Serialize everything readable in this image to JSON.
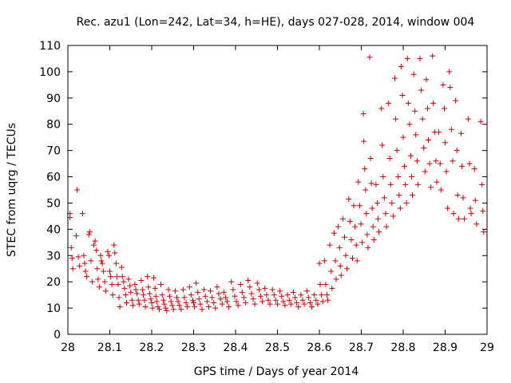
{
  "chart_data": {
    "type": "scatter",
    "title": "Rec. azu1 (Lon=242, Lat=34, h=HE), days 027-028, 2014, window 004",
    "xlabel": "GPS time / Days of year 2014",
    "ylabel": "STEC from uqrg / TECUs",
    "xlim": [
      28,
      29
    ],
    "ylim": [
      0,
      110
    ],
    "x_ticks": [
      28,
      28.1,
      28.2,
      28.3,
      28.4,
      28.5,
      28.6,
      28.7,
      28.8,
      28.9,
      29
    ],
    "x_tick_labels": [
      "28",
      "28.1",
      "28.2",
      "28.3",
      "28.4",
      "28.5",
      "28.6",
      "28.7",
      "28.8",
      "28.9",
      "29"
    ],
    "y_ticks": [
      0,
      10,
      20,
      30,
      40,
      50,
      60,
      70,
      80,
      90,
      100,
      110
    ],
    "y_tick_labels": [
      "0",
      "10",
      "20",
      "30",
      "40",
      "50",
      "60",
      "70",
      "80",
      "90",
      "100",
      "110"
    ],
    "grid": false,
    "marker": "+",
    "color": "#cc0000",
    "series": [
      {
        "name": "STEC",
        "points": [
          [
            28.005,
            46
          ],
          [
            28.005,
            44.5
          ],
          [
            28.008,
            33
          ],
          [
            28.01,
            29
          ],
          [
            28.012,
            25
          ],
          [
            28.02,
            37.5
          ],
          [
            28.022,
            55
          ],
          [
            28.025,
            29.5
          ],
          [
            28.028,
            26
          ],
          [
            28.035,
            46
          ],
          [
            28.038,
            30
          ],
          [
            28.04,
            27
          ],
          [
            28.042,
            24
          ],
          [
            28.045,
            22
          ],
          [
            28.05,
            38
          ],
          [
            28.052,
            39
          ],
          [
            28.055,
            28
          ],
          [
            28.058,
            20
          ],
          [
            28.062,
            34
          ],
          [
            28.065,
            35.5
          ],
          [
            28.068,
            32
          ],
          [
            28.07,
            25
          ],
          [
            28.072,
            21
          ],
          [
            28.075,
            18
          ],
          [
            28.078,
            30
          ],
          [
            28.08,
            28
          ],
          [
            28.082,
            27
          ],
          [
            28.085,
            24
          ],
          [
            28.088,
            20
          ],
          [
            28.09,
            16.5
          ],
          [
            28.095,
            31.5
          ],
          [
            28.098,
            30
          ],
          [
            28.1,
            24
          ],
          [
            28.102,
            22
          ],
          [
            28.105,
            19
          ],
          [
            28.107,
            15
          ],
          [
            28.11,
            34
          ],
          [
            28.112,
            31
          ],
          [
            28.115,
            27
          ],
          [
            28.117,
            22
          ],
          [
            28.12,
            19
          ],
          [
            28.122,
            14
          ],
          [
            28.124,
            10.5
          ],
          [
            28.128,
            25.5
          ],
          [
            28.13,
            22
          ],
          [
            28.133,
            20
          ],
          [
            28.135,
            17.5
          ],
          [
            28.138,
            15
          ],
          [
            28.14,
            12
          ],
          [
            28.145,
            21
          ],
          [
            28.148,
            18.5
          ],
          [
            28.15,
            16
          ],
          [
            28.153,
            13
          ],
          [
            28.155,
            11
          ],
          [
            28.16,
            19
          ],
          [
            28.162,
            17
          ],
          [
            28.165,
            15.5
          ],
          [
            28.168,
            13
          ],
          [
            28.17,
            11.5
          ],
          [
            28.175,
            20.5
          ],
          [
            28.178,
            17
          ],
          [
            28.18,
            15
          ],
          [
            28.183,
            13
          ],
          [
            28.185,
            10.5
          ],
          [
            28.19,
            22
          ],
          [
            28.192,
            18
          ],
          [
            28.195,
            15.5
          ],
          [
            28.198,
            13.5
          ],
          [
            28.2,
            12
          ],
          [
            28.202,
            10
          ],
          [
            28.205,
            21.5
          ],
          [
            28.208,
            17.5
          ],
          [
            28.21,
            14.5
          ],
          [
            28.212,
            12.5
          ],
          [
            28.215,
            10.5
          ],
          [
            28.218,
            9.5
          ],
          [
            28.222,
            19
          ],
          [
            28.225,
            15
          ],
          [
            28.228,
            13
          ],
          [
            28.23,
            11.5
          ],
          [
            28.233,
            10
          ],
          [
            28.236,
            9
          ],
          [
            28.24,
            17
          ],
          [
            28.243,
            14.5
          ],
          [
            28.246,
            12.5
          ],
          [
            28.249,
            11
          ],
          [
            28.252,
            9.5
          ],
          [
            28.256,
            16.5
          ],
          [
            28.26,
            14
          ],
          [
            28.263,
            12.5
          ],
          [
            28.266,
            11
          ],
          [
            28.27,
            9.5
          ],
          [
            28.275,
            17
          ],
          [
            28.278,
            14
          ],
          [
            28.282,
            12
          ],
          [
            28.285,
            10.5
          ],
          [
            28.29,
            18
          ],
          [
            28.294,
            15
          ],
          [
            28.298,
            13
          ],
          [
            28.3,
            12
          ],
          [
            28.302,
            10.5
          ],
          [
            28.306,
            19.5
          ],
          [
            28.31,
            16
          ],
          [
            28.313,
            13.5
          ],
          [
            28.316,
            11.5
          ],
          [
            28.32,
            9.5
          ],
          [
            28.325,
            17
          ],
          [
            28.328,
            14.5
          ],
          [
            28.332,
            12.5
          ],
          [
            28.336,
            10.5
          ],
          [
            28.34,
            16.5
          ],
          [
            28.344,
            14
          ],
          [
            28.348,
            12
          ],
          [
            28.352,
            10
          ],
          [
            28.356,
            18
          ],
          [
            28.36,
            15.5
          ],
          [
            28.364,
            13.5
          ],
          [
            28.368,
            11.5
          ],
          [
            28.372,
            16
          ],
          [
            28.376,
            14
          ],
          [
            28.38,
            12.5
          ],
          [
            28.384,
            10.5
          ],
          [
            28.39,
            20
          ],
          [
            28.394,
            17
          ],
          [
            28.398,
            14.5
          ],
          [
            28.402,
            12.5
          ],
          [
            28.406,
            11
          ],
          [
            28.412,
            19
          ],
          [
            28.416,
            16
          ],
          [
            28.42,
            14
          ],
          [
            28.424,
            12
          ],
          [
            28.43,
            20.5
          ],
          [
            28.434,
            18
          ],
          [
            28.438,
            15.5
          ],
          [
            28.442,
            13.5
          ],
          [
            28.446,
            11.5
          ],
          [
            28.452,
            19.5
          ],
          [
            28.456,
            17
          ],
          [
            28.46,
            14.5
          ],
          [
            28.464,
            12.5
          ],
          [
            28.47,
            17.5
          ],
          [
            28.474,
            15
          ],
          [
            28.478,
            13
          ],
          [
            28.482,
            11.5
          ],
          [
            28.488,
            17
          ],
          [
            28.492,
            15
          ],
          [
            28.496,
            13
          ],
          [
            28.5,
            11.5
          ],
          [
            28.506,
            16.5
          ],
          [
            28.51,
            14.5
          ],
          [
            28.514,
            12.5
          ],
          [
            28.518,
            11
          ],
          [
            28.524,
            15
          ],
          [
            28.528,
            13
          ],
          [
            28.532,
            11.5
          ],
          [
            28.538,
            16
          ],
          [
            28.542,
            14
          ],
          [
            28.546,
            12
          ],
          [
            28.55,
            10.5
          ],
          [
            28.556,
            15
          ],
          [
            28.56,
            13
          ],
          [
            28.564,
            11.5
          ],
          [
            28.57,
            16.5
          ],
          [
            28.574,
            14
          ],
          [
            28.578,
            12
          ],
          [
            28.582,
            10.5
          ],
          [
            28.588,
            15
          ],
          [
            28.592,
            13
          ],
          [
            28.596,
            11.5
          ],
          [
            28.6,
            27
          ],
          [
            28.602,
            19
          ],
          [
            28.605,
            15
          ],
          [
            28.608,
            12.5
          ],
          [
            28.612,
            28
          ],
          [
            28.615,
            19
          ],
          [
            28.618,
            15
          ],
          [
            28.62,
            13
          ],
          [
            28.625,
            34
          ],
          [
            28.628,
            24
          ],
          [
            28.63,
            17.5
          ],
          [
            28.635,
            38.5
          ],
          [
            28.638,
            28
          ],
          [
            28.64,
            21
          ],
          [
            28.645,
            41
          ],
          [
            28.648,
            33
          ],
          [
            28.65,
            26
          ],
          [
            28.652,
            22.5
          ],
          [
            28.656,
            44
          ],
          [
            28.66,
            37
          ],
          [
            28.663,
            30
          ],
          [
            28.666,
            25
          ],
          [
            28.67,
            51.5
          ],
          [
            28.673,
            43
          ],
          [
            28.676,
            36
          ],
          [
            28.679,
            29
          ],
          [
            28.682,
            49
          ],
          [
            28.685,
            41
          ],
          [
            28.688,
            34
          ],
          [
            28.69,
            28
          ],
          [
            28.693,
            58
          ],
          [
            28.696,
            49
          ],
          [
            28.699,
            42
          ],
          [
            28.702,
            35
          ],
          [
            28.705,
            84
          ],
          [
            28.706,
            73.5
          ],
          [
            28.708,
            63
          ],
          [
            28.71,
            55
          ],
          [
            28.712,
            46
          ],
          [
            28.714,
            38
          ],
          [
            28.716,
            33
          ],
          [
            28.72,
            105.5
          ],
          [
            28.722,
            67
          ],
          [
            28.724,
            57.5
          ],
          [
            28.726,
            48
          ],
          [
            28.728,
            41
          ],
          [
            28.73,
            36
          ],
          [
            28.735,
            57
          ],
          [
            28.738,
            50
          ],
          [
            28.74,
            44
          ],
          [
            28.742,
            39
          ],
          [
            28.748,
            86
          ],
          [
            28.75,
            72
          ],
          [
            28.752,
            60
          ],
          [
            28.755,
            52
          ],
          [
            28.758,
            46
          ],
          [
            28.76,
            41
          ],
          [
            28.765,
            88
          ],
          [
            28.768,
            67
          ],
          [
            28.77,
            57
          ],
          [
            28.773,
            50
          ],
          [
            28.776,
            45
          ],
          [
            28.78,
            97.5
          ],
          [
            28.782,
            82
          ],
          [
            28.785,
            70
          ],
          [
            28.788,
            60
          ],
          [
            28.79,
            53
          ],
          [
            28.793,
            48
          ],
          [
            28.795,
            102
          ],
          [
            28.798,
            91
          ],
          [
            28.8,
            75
          ],
          [
            28.803,
            64
          ],
          [
            28.805,
            57
          ],
          [
            28.808,
            50
          ],
          [
            28.81,
            105
          ],
          [
            28.812,
            88
          ],
          [
            28.815,
            80
          ],
          [
            28.818,
            68
          ],
          [
            28.82,
            60
          ],
          [
            28.822,
            53
          ],
          [
            28.825,
            99
          ],
          [
            28.828,
            85
          ],
          [
            28.83,
            76
          ],
          [
            28.833,
            66
          ],
          [
            28.835,
            57
          ],
          [
            28.84,
            105
          ],
          [
            28.843,
            93
          ],
          [
            28.846,
            82
          ],
          [
            28.849,
            71
          ],
          [
            28.852,
            62
          ],
          [
            28.855,
            97
          ],
          [
            28.858,
            86
          ],
          [
            28.86,
            74
          ],
          [
            28.863,
            65
          ],
          [
            28.866,
            56
          ],
          [
            28.87,
            106
          ],
          [
            28.872,
            88
          ],
          [
            28.875,
            77
          ],
          [
            28.878,
            66
          ],
          [
            28.88,
            58
          ],
          [
            28.885,
            77
          ],
          [
            28.888,
            65
          ],
          [
            28.89,
            55
          ],
          [
            28.895,
            95
          ],
          [
            28.898,
            86
          ],
          [
            28.9,
            73
          ],
          [
            28.903,
            62
          ],
          [
            28.906,
            48
          ],
          [
            28.91,
            100
          ],
          [
            28.912,
            94
          ],
          [
            28.915,
            78
          ],
          [
            28.918,
            66
          ],
          [
            28.92,
            46
          ],
          [
            28.925,
            89
          ],
          [
            28.928,
            70
          ],
          [
            28.93,
            53
          ],
          [
            28.932,
            44
          ],
          [
            28.938,
            76.5
          ],
          [
            28.94,
            64
          ],
          [
            28.943,
            52
          ],
          [
            28.946,
            44
          ],
          [
            28.955,
            82
          ],
          [
            28.958,
            65
          ],
          [
            28.96,
            48
          ],
          [
            28.962,
            46
          ],
          [
            28.97,
            63
          ],
          [
            28.972,
            51
          ],
          [
            28.975,
            42
          ],
          [
            28.985,
            81
          ],
          [
            28.988,
            57
          ],
          [
            28.99,
            47
          ],
          [
            28.992,
            39
          ]
        ]
      }
    ]
  }
}
